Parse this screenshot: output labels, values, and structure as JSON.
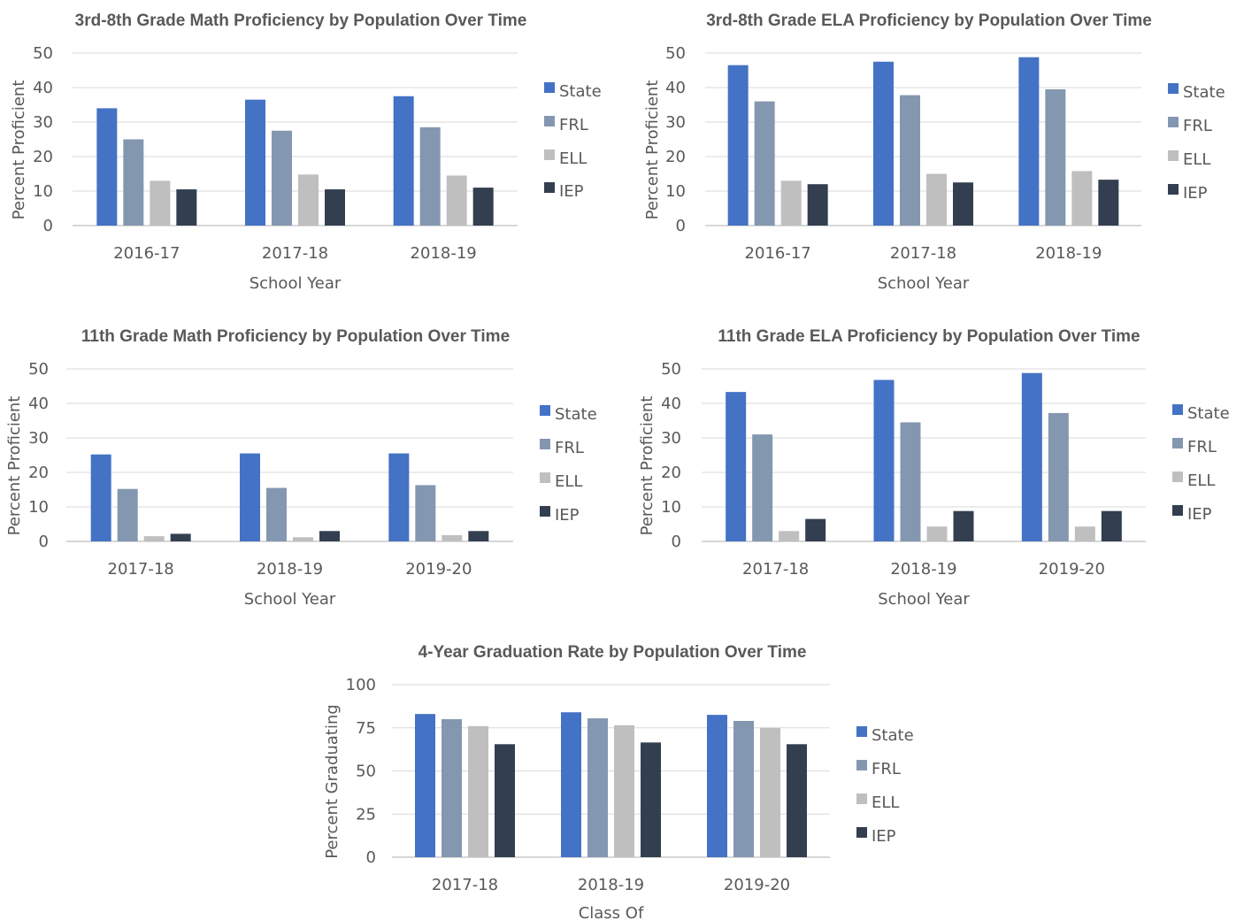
{
  "colors": {
    "State": "#4472c4",
    "FRL": "#8497b0",
    "ELL": "#bfbfbf",
    "IEP": "#333f50"
  },
  "chart_data": [
    {
      "type": "bar",
      "title": "3rd-8th Grade Math Proficiency by Population Over Time",
      "xlabel": "School Year",
      "ylabel": "Percent Proficient",
      "categories": [
        "2016-17",
        "2017-18",
        "2018-19"
      ],
      "ylim": [
        0,
        50
      ],
      "yticks": [
        0,
        10,
        20,
        30,
        40,
        50
      ],
      "grid": true,
      "legend": "right",
      "series": [
        {
          "name": "State",
          "values": [
            34,
            36.5,
            37.5
          ]
        },
        {
          "name": "FRL",
          "values": [
            25,
            27.5,
            28.5
          ]
        },
        {
          "name": "ELL",
          "values": [
            13,
            14.8,
            14.5
          ]
        },
        {
          "name": "IEP",
          "values": [
            10.5,
            10.5,
            11
          ]
        }
      ]
    },
    {
      "type": "bar",
      "title": "3rd-8th Grade ELA Proficiency by Population Over Time",
      "xlabel": "School Year",
      "ylabel": "Percent Proficient",
      "categories": [
        "2016-17",
        "2017-18",
        "2018-19"
      ],
      "ylim": [
        0,
        50
      ],
      "yticks": [
        0,
        10,
        20,
        30,
        40,
        50
      ],
      "grid": true,
      "legend": "right",
      "series": [
        {
          "name": "State",
          "values": [
            46.5,
            47.5,
            48.8
          ]
        },
        {
          "name": "FRL",
          "values": [
            36,
            37.8,
            39.5
          ]
        },
        {
          "name": "ELL",
          "values": [
            13,
            15,
            15.8
          ]
        },
        {
          "name": "IEP",
          "values": [
            12,
            12.5,
            13.3
          ]
        }
      ]
    },
    {
      "type": "bar",
      "title": "11th Grade Math Proficiency by Population Over Time",
      "xlabel": "School Year",
      "ylabel": "Percent Proficient",
      "categories": [
        "2017-18",
        "2018-19",
        "2019-20"
      ],
      "ylim": [
        0,
        50
      ],
      "yticks": [
        0,
        10,
        20,
        30,
        40,
        50
      ],
      "grid": true,
      "legend": "right",
      "series": [
        {
          "name": "State",
          "values": [
            25.2,
            25.5,
            25.5
          ]
        },
        {
          "name": "FRL",
          "values": [
            15.2,
            15.5,
            16.3
          ]
        },
        {
          "name": "ELL",
          "values": [
            1.5,
            1.2,
            1.8
          ]
        },
        {
          "name": "IEP",
          "values": [
            2.2,
            3,
            3
          ]
        }
      ]
    },
    {
      "type": "bar",
      "title": "11th Grade ELA Proficiency by Population Over Time",
      "xlabel": "School Year",
      "ylabel": "Percent Proficient",
      "categories": [
        "2017-18",
        "2018-19",
        "2019-20"
      ],
      "ylim": [
        0,
        50
      ],
      "yticks": [
        0,
        10,
        20,
        30,
        40,
        50
      ],
      "grid": true,
      "legend": "right",
      "series": [
        {
          "name": "State",
          "values": [
            43.3,
            46.8,
            48.8
          ]
        },
        {
          "name": "FRL",
          "values": [
            31,
            34.5,
            37.2
          ]
        },
        {
          "name": "ELL",
          "values": [
            3,
            4.3,
            4.3
          ]
        },
        {
          "name": "IEP",
          "values": [
            6.5,
            8.8,
            8.8
          ]
        }
      ]
    },
    {
      "type": "bar",
      "title": "4-Year Graduation Rate by Population Over Time",
      "xlabel": "Class Of",
      "ylabel": "Percent Graduating",
      "categories": [
        "2017-18",
        "2018-19",
        "2019-20"
      ],
      "ylim": [
        0,
        100
      ],
      "yticks": [
        0,
        25,
        50,
        75,
        100
      ],
      "grid": true,
      "legend": "right",
      "series": [
        {
          "name": "State",
          "values": [
            83,
            84,
            82.5
          ]
        },
        {
          "name": "FRL",
          "values": [
            80,
            80.5,
            79
          ]
        },
        {
          "name": "ELL",
          "values": [
            76,
            76.5,
            75
          ]
        },
        {
          "name": "IEP",
          "values": [
            65.5,
            66.5,
            65.5
          ]
        }
      ]
    }
  ]
}
